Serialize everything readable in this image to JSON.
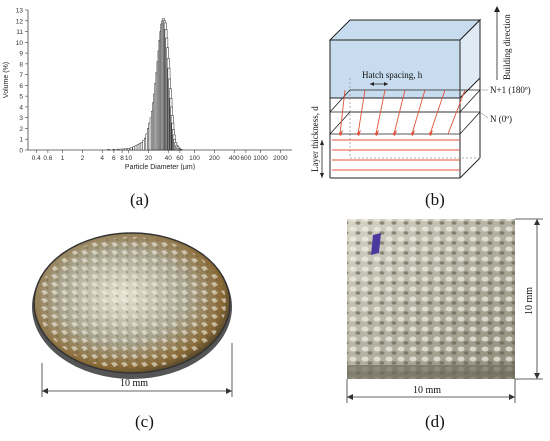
{
  "figure": {
    "captions": {
      "a": "(a)",
      "b": "(b)",
      "c": "(c)",
      "d": "(d)"
    }
  },
  "chart_data": {
    "type": "bar",
    "xlabel": "Particle Diameter (µm)",
    "ylabel": "Volume (%)",
    "x_scale": "log",
    "x_ticks": [
      "0.4",
      "0.6",
      "1",
      "2",
      "4",
      "6",
      "8",
      "10",
      "20",
      "40",
      "60",
      "100",
      "200",
      "400",
      "600",
      "1000",
      "2000"
    ],
    "x_tick_values": [
      0.4,
      0.6,
      1,
      2,
      4,
      6,
      8,
      10,
      20,
      40,
      60,
      100,
      200,
      400,
      600,
      1000,
      2000
    ],
    "y_ticks": [
      "0",
      "1",
      "2",
      "3",
      "4",
      "5",
      "6",
      "7",
      "8",
      "9",
      "10",
      "11",
      "12",
      "13"
    ],
    "ylim": [
      0,
      13
    ],
    "xlim": [
      0.3,
      3000
    ],
    "grid": false,
    "x": [
      5,
      6,
      7,
      8,
      9,
      10,
      11,
      12,
      13,
      14,
      15,
      16,
      17,
      18,
      19,
      20,
      21,
      22,
      23,
      24,
      25,
      26,
      27,
      28,
      29,
      30,
      31,
      32,
      33,
      34,
      35,
      36,
      37,
      38,
      39,
      40,
      41,
      42,
      43,
      44,
      45,
      46,
      47,
      48,
      49,
      50,
      52,
      54,
      56,
      58,
      60,
      62,
      64
    ],
    "values": [
      0.05,
      0.06,
      0.08,
      0.1,
      0.12,
      0.15,
      0.2,
      0.3,
      0.4,
      0.5,
      0.6,
      0.7,
      0.9,
      1.1,
      1.5,
      2,
      2.5,
      3,
      3.6,
      4.4,
      5.2,
      6.2,
      7.2,
      8.2,
      9.2,
      10.2,
      11,
      11.7,
      12,
      12.2,
      12,
      11.8,
      11.2,
      10.4,
      9.5,
      8.5,
      7.6,
      6.6,
      5.7,
      4.8,
      4,
      3.2,
      2.5,
      1.9,
      1.4,
      1,
      0.7,
      0.45,
      0.3,
      0.18,
      0.1,
      0.05,
      0.02
    ]
  },
  "diagram_b": {
    "building_direction": "Building direction",
    "hatch_spacing": "Hatch spacing, h",
    "layer_thickness": "Layer thickness, d",
    "layer_top": "N+1 (180º)",
    "layer_bottom": "N (0º)"
  },
  "photo_c": {
    "dimension": "10 mm"
  },
  "photo_d": {
    "dimension_bottom": "10 mm",
    "dimension_right": "10 mm"
  }
}
